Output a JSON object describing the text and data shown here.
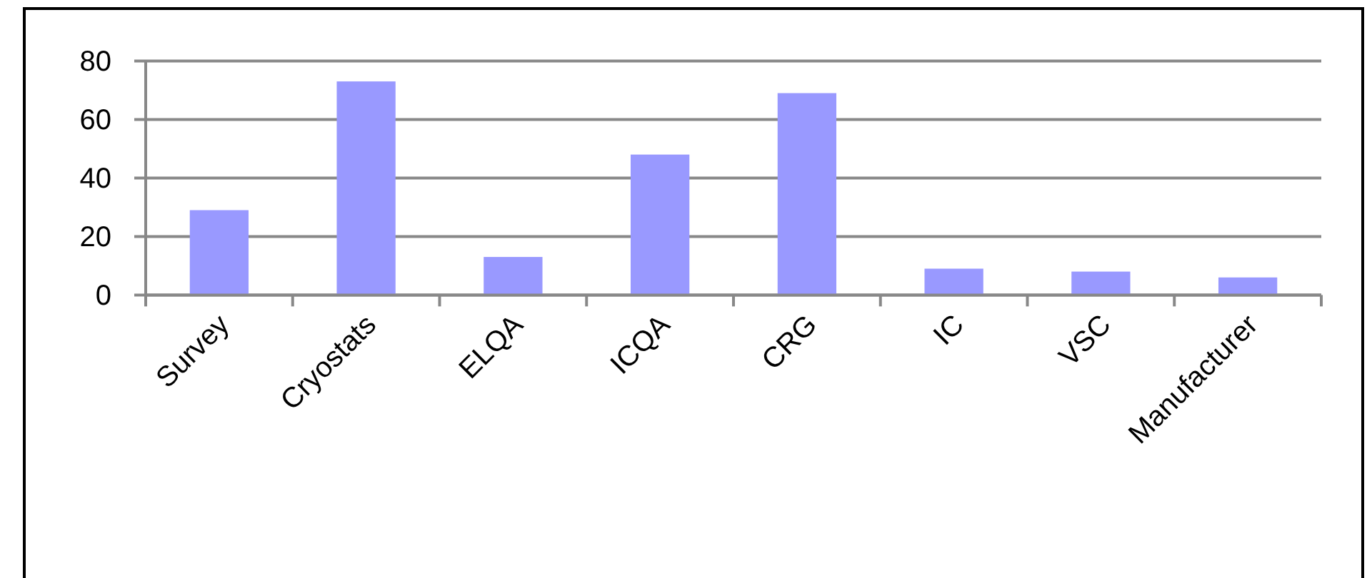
{
  "chart_data": {
    "type": "bar",
    "categories": [
      "Survey",
      "Cryostats",
      "ELQA",
      "ICQA",
      "CRG",
      "IC",
      "VSC",
      "Manufacturer"
    ],
    "values": [
      29,
      73,
      13,
      48,
      69,
      9,
      8,
      6
    ],
    "color": "#9999ff",
    "ylim": [
      0,
      80
    ],
    "yticks": [
      0,
      20,
      40,
      60,
      80
    ],
    "grid": "y"
  }
}
